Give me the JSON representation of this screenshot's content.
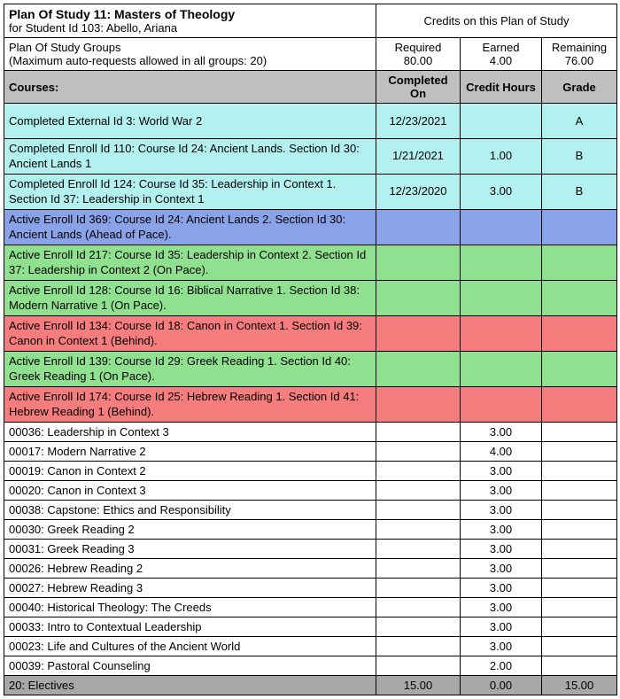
{
  "colors": {
    "header_gray": "#bfbfbf",
    "cyan": "#b3f0f0",
    "purple": "#8aa3e8",
    "green": "#8fe08f",
    "red": "#f57d7d",
    "gray_footer": "#a8a8a8",
    "white": "#ffffff",
    "border": "#000000"
  },
  "header": {
    "plan_title": "Plan Of Study 11: Masters of Theology",
    "student_line": "for Student Id 103: Abello, Ariana",
    "credits_label": "Credits on this Plan of Study",
    "groups_line1": "Plan Of Study Groups",
    "groups_line2": "(Maximum auto-requests allowed in all groups: 20)",
    "required_label": "Required",
    "required_value": "80.00",
    "earned_label": "Earned",
    "earned_value": "4.00",
    "remaining_label": "Remaining",
    "remaining_value": "76.00",
    "courses_label": "Courses:",
    "completed_on": "Completed On",
    "credit_hours": "Credit Hours",
    "grade": "Grade"
  },
  "rows": [
    {
      "cls": "row-cyan tall",
      "c0": "Completed External Id 3: World War 2",
      "c1": "12/23/2021",
      "c2": "",
      "c3": "A"
    },
    {
      "cls": "row-cyan tall two-line",
      "c0": "Completed Enroll Id 110: Course Id 24: Ancient Lands. Section Id 30: Ancient Lands 1",
      "c1": "1/21/2021",
      "c2": "1.00",
      "c3": "B"
    },
    {
      "cls": "row-cyan tall two-line",
      "c0": "Completed Enroll Id 124: Course Id 35: Leadership in Context 1. Section Id 37: Leadership in Context 1",
      "c1": "12/23/2020",
      "c2": "3.00",
      "c3": "B"
    },
    {
      "cls": "row-purple tall two-line",
      "c0": "Active Enroll Id 369: Course Id 24: Ancient Lands 2. Section Id 30: Ancient Lands (Ahead of Pace).",
      "c1": "",
      "c2": "",
      "c3": ""
    },
    {
      "cls": "row-green tall two-line",
      "c0": "Active Enroll Id 217: Course Id 35: Leadership in Context 2. Section Id 37: Leadership in Context 2 (On Pace).",
      "c1": "",
      "c2": "",
      "c3": ""
    },
    {
      "cls": "row-green tall two-line",
      "c0": "Active Enroll Id 128: Course Id 16: Biblical Narrative 1. Section Id 38:  Modern Narrative 1 (On Pace).",
      "c1": "",
      "c2": "",
      "c3": ""
    },
    {
      "cls": "row-red tall two-line",
      "c0": "Active Enroll Id 134: Course Id 18: Canon in Context 1. Section Id 39: Canon in Context 1 (Behind).",
      "c1": "",
      "c2": "",
      "c3": ""
    },
    {
      "cls": "row-green tall two-line",
      "c0": "Active Enroll Id 139: Course Id 29: Greek Reading 1. Section Id 40: Greek Reading 1 (On Pace).",
      "c1": "",
      "c2": "",
      "c3": ""
    },
    {
      "cls": "row-red tall two-line",
      "c0": "Active Enroll Id 174: Course Id 25: Hebrew Reading 1. Section Id 41: Hebrew Reading 1 (Behind).",
      "c1": "",
      "c2": "",
      "c3": ""
    },
    {
      "cls": "row-white short",
      "c0": "00036: Leadership in Context 3",
      "c1": "",
      "c2": "3.00",
      "c3": ""
    },
    {
      "cls": "row-white short",
      "c0": "00017: Modern Narrative 2",
      "c1": "",
      "c2": "4.00",
      "c3": ""
    },
    {
      "cls": "row-white short",
      "c0": "00019: Canon in Context 2",
      "c1": "",
      "c2": "3.00",
      "c3": ""
    },
    {
      "cls": "row-white short",
      "c0": "00020: Canon in Context 3",
      "c1": "",
      "c2": "3.00",
      "c3": ""
    },
    {
      "cls": "row-white short",
      "c0": "00038: Capstone: Ethics and Responsibility",
      "c1": "",
      "c2": "3.00",
      "c3": ""
    },
    {
      "cls": "row-white short",
      "c0": "00030: Greek Reading 2",
      "c1": "",
      "c2": "3.00",
      "c3": ""
    },
    {
      "cls": "row-white short",
      "c0": "00031: Greek Reading 3",
      "c1": "",
      "c2": "3.00",
      "c3": ""
    },
    {
      "cls": "row-white short",
      "c0": "00026: Hebrew Reading 2",
      "c1": "",
      "c2": "3.00",
      "c3": ""
    },
    {
      "cls": "row-white short",
      "c0": "00027: Hebrew Reading 3",
      "c1": "",
      "c2": "3.00",
      "c3": ""
    },
    {
      "cls": "row-white short",
      "c0": "00040: Historical Theology: The Creeds",
      "c1": "",
      "c2": "3.00",
      "c3": ""
    },
    {
      "cls": "row-white short",
      "c0": "00033: Intro to Contextual Leadership",
      "c1": "",
      "c2": "3.00",
      "c3": ""
    },
    {
      "cls": "row-white short",
      "c0": "00023: Life and Cultures of the Ancient World",
      "c1": "",
      "c2": "3.00",
      "c3": ""
    },
    {
      "cls": "row-white short",
      "c0": "00039: Pastoral Counseling",
      "c1": "",
      "c2": "2.00",
      "c3": ""
    },
    {
      "cls": "row-gray short",
      "c0": "20: Electives",
      "c1": "15.00",
      "c2": "0.00",
      "c3": "15.00"
    }
  ]
}
